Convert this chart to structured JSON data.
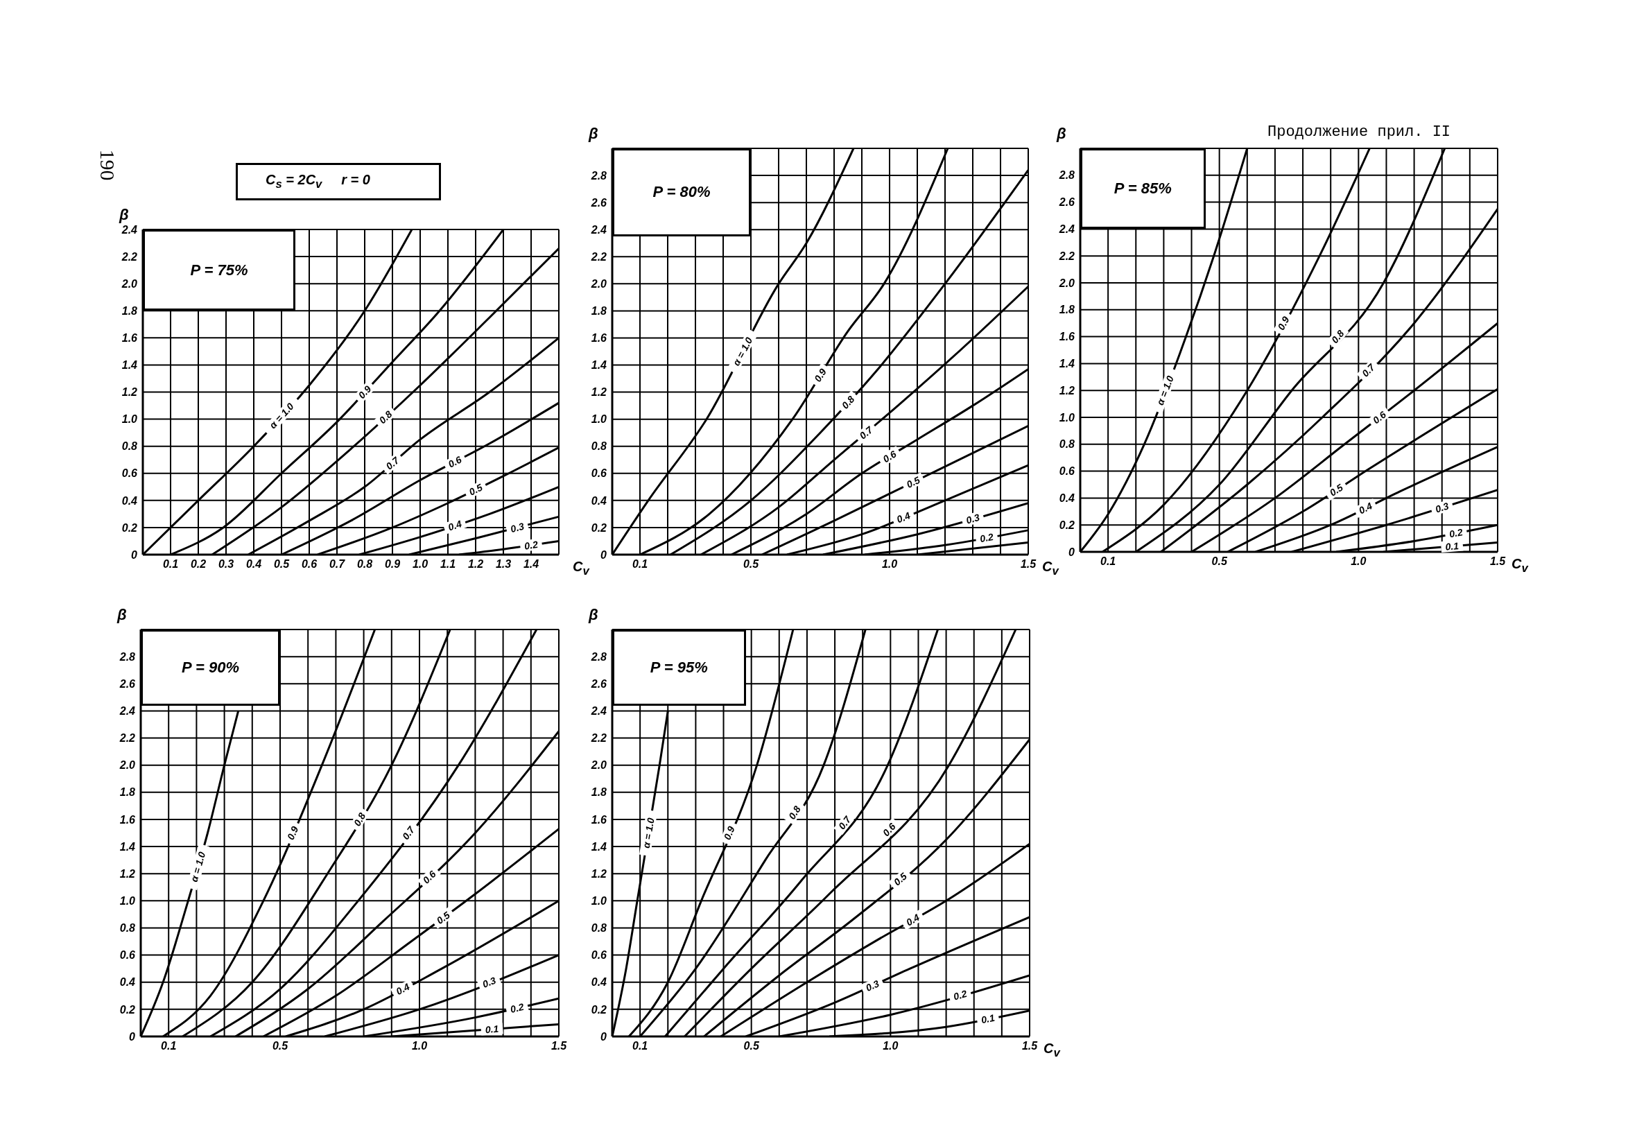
{
  "chart_data": [
    {
      "type": "line",
      "title": "P = 75%",
      "xlabel": "C$_{v}$",
      "ylabel": "β",
      "annotations": [
        "C$_{s}$ = 2C$_{v}$     r = 0",
        "190"
      ],
      "grid": true,
      "xlim": [
        0,
        1.5
      ],
      "xticks": [
        {
          "value": 0,
          "label": null
        },
        0.1,
        0.2,
        0.3,
        0.4,
        0.5,
        0.6,
        0.7,
        0.8,
        0.9,
        {
          "value": 1,
          "label": "1.0"
        },
        1.1,
        1.2,
        1.3,
        1.4,
        {
          "value": 1.5,
          "label": null
        }
      ],
      "ylim": [
        0,
        2.4
      ],
      "yticks": [
        0,
        0.2,
        0.4,
        0.6,
        0.8,
        {
          "value": 1,
          "label": "1.0"
        },
        1.2,
        1.4,
        1.6,
        1.8,
        {
          "value": 2,
          "label": "2.0"
        },
        2.2,
        2.4
      ],
      "series": [
        {
          "name": "α = 1.0",
          "color": "#000000",
          "x": [
            0,
            0.2,
            0.4,
            0.6,
            0.8,
            0.97
          ],
          "values": [
            0,
            0.4,
            0.8,
            1.25,
            1.8,
            2.4
          ]
        },
        {
          "name": "0.9",
          "color": "#000000",
          "x": [
            0.1,
            0.29,
            0.5,
            0.71,
            0.89,
            1.07,
            1.3
          ],
          "values": [
            0,
            0.2,
            0.6,
            1.0,
            1.4,
            1.8,
            2.4
          ]
        },
        {
          "name": "0.8",
          "color": "#000000",
          "x": [
            0.25,
            0.5,
            0.75,
            1.0,
            1.25,
            1.5
          ],
          "values": [
            0,
            0.35,
            0.78,
            1.25,
            1.75,
            2.26
          ]
        },
        {
          "name": "0.7",
          "color": "#000000",
          "x": [
            0.38,
            0.6,
            0.8,
            1.0,
            1.25,
            1.5
          ],
          "values": [
            0,
            0.25,
            0.5,
            0.85,
            1.2,
            1.6
          ]
        },
        {
          "name": "0.6",
          "color": "#000000",
          "x": [
            0.5,
            0.75,
            1.0,
            1.25,
            1.5
          ],
          "values": [
            0,
            0.25,
            0.55,
            0.82,
            1.12
          ]
        },
        {
          "name": "0.5",
          "color": "#000000",
          "x": [
            0.63,
            0.9,
            1.1,
            1.3,
            1.5
          ],
          "values": [
            0,
            0.2,
            0.38,
            0.58,
            0.79
          ]
        },
        {
          "name": "0.4",
          "color": "#000000",
          "x": [
            0.78,
            1.0,
            1.25,
            1.5
          ],
          "values": [
            0,
            0.13,
            0.3,
            0.5
          ]
        },
        {
          "name": "0.3",
          "color": "#000000",
          "x": [
            0.96,
            1.2,
            1.5
          ],
          "values": [
            0,
            0.12,
            0.28
          ]
        },
        {
          "name": "0.2",
          "color": "#000000",
          "x": [
            1.14,
            1.3,
            1.5
          ],
          "values": [
            0,
            0.04,
            0.1
          ]
        }
      ]
    },
    {
      "type": "line",
      "title": "P = 80%",
      "xlabel": "C$_{v}$",
      "ylabel": "β",
      "grid": true,
      "xlim": [
        0,
        1.5
      ],
      "xticks": [
        {
          "value": 0,
          "label": null
        },
        0.1,
        {
          "value": 0.2,
          "label": null
        },
        {
          "value": 0.3,
          "label": null
        },
        {
          "value": 0.4,
          "label": null
        },
        0.5,
        {
          "value": 0.6,
          "label": null
        },
        {
          "value": 0.7,
          "label": null
        },
        {
          "value": 0.8,
          "label": null
        },
        {
          "value": 0.9,
          "label": null
        },
        {
          "value": 1,
          "label": "1.0"
        },
        {
          "value": 1.1,
          "label": null
        },
        {
          "value": 1.2,
          "label": null
        },
        {
          "value": 1.3,
          "label": null
        },
        {
          "value": 1.4,
          "label": null
        },
        1.5
      ],
      "ylim": [
        0,
        3
      ],
      "yticks": [
        0,
        0.2,
        0.4,
        0.6,
        0.8,
        {
          "value": 1,
          "label": "1.0"
        },
        1.2,
        1.4,
        1.6,
        1.8,
        {
          "value": 2,
          "label": "2.0"
        },
        2.2,
        2.4,
        2.6,
        2.8,
        {
          "value": 3,
          "label": null
        }
      ],
      "series": [
        {
          "name": "α = 1.0",
          "color": "#000000",
          "x": [
            0,
            0.13,
            0.34,
            0.6,
            0.7,
            0.87
          ],
          "values": [
            0,
            0.4,
            1.0,
            2.0,
            2.3,
            3.0
          ]
        },
        {
          "name": "0.9",
          "color": "#000000",
          "x": [
            0.1,
            0.35,
            0.65,
            0.85,
            0.98,
            1.21
          ],
          "values": [
            0,
            0.3,
            1.0,
            1.65,
            2.0,
            3.0
          ]
        },
        {
          "name": "0.8",
          "color": "#000000",
          "x": [
            0.21,
            0.5,
            0.75,
            0.95,
            1.2,
            1.5
          ],
          "values": [
            0,
            0.4,
            0.9,
            1.35,
            2.0,
            2.84
          ]
        },
        {
          "name": "0.7",
          "color": "#000000",
          "x": [
            0.32,
            0.6,
            0.8,
            1.03,
            1.25,
            1.5
          ],
          "values": [
            0,
            0.35,
            0.7,
            1.1,
            1.5,
            1.98
          ]
        },
        {
          "name": "0.6",
          "color": "#000000",
          "x": [
            0.43,
            0.7,
            0.9,
            1.1,
            1.3,
            1.5
          ],
          "values": [
            0,
            0.3,
            0.6,
            0.85,
            1.1,
            1.37
          ]
        },
        {
          "name": "0.5",
          "color": "#000000",
          "x": [
            0.54,
            0.8,
            1.0,
            1.17,
            1.5
          ],
          "values": [
            0,
            0.25,
            0.45,
            0.62,
            0.95
          ]
        },
        {
          "name": "0.4",
          "color": "#000000",
          "x": [
            0.63,
            0.9,
            1.2,
            1.5
          ],
          "values": [
            0,
            0.15,
            0.4,
            0.66
          ]
        },
        {
          "name": "0.3",
          "color": "#000000",
          "x": [
            0.76,
            1.1,
            1.5
          ],
          "values": [
            0,
            0.15,
            0.38
          ]
        },
        {
          "name": "0.2",
          "color": "#000000",
          "x": [
            0.91,
            1.2,
            1.5
          ],
          "values": [
            0,
            0.07,
            0.18
          ]
        },
        {
          "color": "#000000",
          "x": [
            1.1,
            1.5
          ],
          "values": [
            0,
            0.09
          ]
        }
      ]
    },
    {
      "type": "line",
      "title": "P = 85%",
      "xlabel": "C$_{v}$",
      "ylabel": "β",
      "annotations": [
        "Продолжение прил. II"
      ],
      "grid": true,
      "xlim": [
        0,
        1.5
      ],
      "xticks": [
        {
          "value": 0,
          "label": null
        },
        0.1,
        {
          "value": 0.2,
          "label": null
        },
        {
          "value": 0.3,
          "label": null
        },
        {
          "value": 0.4,
          "label": null
        },
        0.5,
        {
          "value": 0.6,
          "label": null
        },
        {
          "value": 0.7,
          "label": null
        },
        {
          "value": 0.8,
          "label": null
        },
        {
          "value": 0.9,
          "label": null
        },
        {
          "value": 1,
          "label": "1.0"
        },
        {
          "value": 1.1,
          "label": null
        },
        {
          "value": 1.2,
          "label": null
        },
        {
          "value": 1.3,
          "label": null
        },
        {
          "value": 1.4,
          "label": null
        },
        1.5
      ],
      "ylim": [
        0,
        3
      ],
      "yticks": [
        0,
        0.2,
        0.4,
        0.6,
        0.8,
        {
          "value": 1,
          "label": "1.0"
        },
        1.2,
        1.4,
        1.6,
        1.8,
        {
          "value": 2,
          "label": "2.0"
        },
        2.2,
        2.4,
        2.6,
        2.8,
        {
          "value": 3,
          "label": null
        }
      ],
      "series": [
        {
          "name": "α = 1.0",
          "color": "#000000",
          "x": [
            0,
            0.1,
            0.23,
            0.38,
            0.48,
            0.6
          ],
          "values": [
            0,
            0.28,
            0.8,
            1.6,
            2.2,
            3.0
          ]
        },
        {
          "name": "0.9",
          "color": "#000000",
          "x": [
            0.08,
            0.3,
            0.6,
            0.86,
            1.04
          ],
          "values": [
            0,
            0.35,
            1.2,
            2.2,
            3.0
          ]
        },
        {
          "name": "0.8",
          "color": "#000000",
          "x": [
            0.2,
            0.5,
            0.76,
            1.09,
            1.31
          ],
          "values": [
            0,
            0.5,
            1.2,
            2.0,
            3.0
          ]
        },
        {
          "name": "0.7",
          "color": "#000000",
          "x": [
            0.29,
            0.6,
            0.87,
            1.2,
            1.5
          ],
          "values": [
            0,
            0.5,
            1.0,
            1.7,
            2.55
          ]
        },
        {
          "name": "0.6",
          "color": "#000000",
          "x": [
            0.4,
            0.7,
            0.95,
            1.2,
            1.5
          ],
          "values": [
            0,
            0.4,
            0.8,
            1.2,
            1.7
          ]
        },
        {
          "name": "0.5",
          "color": "#000000",
          "x": [
            0.53,
            0.8,
            1.04,
            1.5
          ],
          "values": [
            0,
            0.3,
            0.62,
            1.21
          ]
        },
        {
          "name": "0.4",
          "color": "#000000",
          "x": [
            0.63,
            0.9,
            1.15,
            1.5
          ],
          "values": [
            0,
            0.2,
            0.45,
            0.78
          ]
        },
        {
          "name": "0.3",
          "color": "#000000",
          "x": [
            0.76,
            1.1,
            1.5
          ],
          "values": [
            0,
            0.2,
            0.46
          ]
        },
        {
          "name": "0.2",
          "color": "#000000",
          "x": [
            0.92,
            1.2,
            1.5
          ],
          "values": [
            0,
            0.08,
            0.2
          ]
        },
        {
          "name": "0.1",
          "color": "#000000",
          "x": [
            1.09,
            1.5
          ],
          "values": [
            0,
            0.07
          ]
        }
      ]
    },
    {
      "type": "line",
      "title": "P = 90%",
      "ylabel": "β",
      "grid": true,
      "xlim": [
        0,
        1.5
      ],
      "xticks": [
        {
          "value": 0,
          "label": null
        },
        0.1,
        {
          "value": 0.2,
          "label": null
        },
        {
          "value": 0.3,
          "label": null
        },
        {
          "value": 0.4,
          "label": null
        },
        0.5,
        {
          "value": 0.6,
          "label": null
        },
        {
          "value": 0.7,
          "label": null
        },
        {
          "value": 0.8,
          "label": null
        },
        {
          "value": 0.9,
          "label": null
        },
        {
          "value": 1,
          "label": "1.0"
        },
        {
          "value": 1.1,
          "label": null
        },
        {
          "value": 1.2,
          "label": null
        },
        {
          "value": 1.3,
          "label": null
        },
        {
          "value": 1.4,
          "label": null
        },
        1.5
      ],
      "ylim": [
        0,
        3
      ],
      "yticks": [
        0,
        0.2,
        0.4,
        0.6,
        0.8,
        {
          "value": 1,
          "label": "1.0"
        },
        1.2,
        1.4,
        1.6,
        1.8,
        {
          "value": 2,
          "label": "2.0"
        },
        2.2,
        2.4,
        2.6,
        2.8,
        {
          "value": 3,
          "label": null
        }
      ],
      "series": [
        {
          "name": "α = 1.0",
          "color": "#000000",
          "x": [
            0,
            0.08,
            0.17,
            0.24,
            0.3,
            0.35
          ],
          "values": [
            0,
            0.4,
            1.0,
            1.5,
            2.0,
            2.4
          ]
        },
        {
          "name": "0.9",
          "color": "#000000",
          "x": [
            0.08,
            0.25,
            0.44,
            0.65,
            0.84
          ],
          "values": [
            0,
            0.3,
            1.0,
            2.0,
            3.0
          ]
        },
        {
          "name": "0.8",
          "color": "#000000",
          "x": [
            0.15,
            0.4,
            0.67,
            0.9,
            1.11
          ],
          "values": [
            0,
            0.4,
            1.2,
            2.0,
            3.0
          ]
        },
        {
          "name": "0.7",
          "color": "#000000",
          "x": [
            0.25,
            0.5,
            0.78,
            1.14,
            1.42
          ],
          "values": [
            0,
            0.35,
            1.0,
            2.0,
            3.0
          ]
        },
        {
          "name": "0.6",
          "color": "#000000",
          "x": [
            0.34,
            0.6,
            0.87,
            1.2,
            1.5
          ],
          "values": [
            0,
            0.35,
            0.85,
            1.5,
            2.25
          ]
        },
        {
          "name": "0.5",
          "color": "#000000",
          "x": [
            0.44,
            0.7,
            0.97,
            1.2,
            1.5
          ],
          "values": [
            0,
            0.3,
            0.7,
            1.05,
            1.53
          ]
        },
        {
          "name": "0.4",
          "color": "#000000",
          "x": [
            0.52,
            0.8,
            1.08,
            1.5
          ],
          "values": [
            0,
            0.2,
            0.5,
            1.0
          ]
        },
        {
          "name": "0.3",
          "color": "#000000",
          "x": [
            0.66,
            1.0,
            1.5
          ],
          "values": [
            0,
            0.2,
            0.6
          ]
        },
        {
          "name": "0.2",
          "color": "#000000",
          "x": [
            0.8,
            1.2,
            1.5
          ],
          "values": [
            0,
            0.14,
            0.28
          ]
        },
        {
          "name": "0.1",
          "color": "#000000",
          "x": [
            0.9,
            1.5
          ],
          "values": [
            0,
            0.09
          ]
        }
      ]
    },
    {
      "type": "line",
      "title": "P = 95%",
      "xlabel": "C$_{v}$",
      "ylabel": "β",
      "grid": true,
      "xlim": [
        0,
        1.5
      ],
      "xticks": [
        {
          "value": 0,
          "label": null
        },
        0.1,
        {
          "value": 0.2,
          "label": null
        },
        {
          "value": 0.3,
          "label": null
        },
        {
          "value": 0.4,
          "label": null
        },
        0.5,
        {
          "value": 0.6,
          "label": null
        },
        {
          "value": 0.7,
          "label": null
        },
        {
          "value": 0.8,
          "label": null
        },
        {
          "value": 0.9,
          "label": null
        },
        {
          "value": 1,
          "label": "1.0"
        },
        {
          "value": 1.1,
          "label": null
        },
        {
          "value": 1.2,
          "label": null
        },
        {
          "value": 1.3,
          "label": null
        },
        {
          "value": 1.4,
          "label": null
        },
        1.5
      ],
      "ylim": [
        0,
        3
      ],
      "yticks": [
        0,
        0.2,
        0.4,
        0.6,
        0.8,
        {
          "value": 1,
          "label": "1.0"
        },
        1.2,
        1.4,
        1.6,
        1.8,
        {
          "value": 2,
          "label": "2.0"
        },
        2.2,
        2.4,
        2.6,
        2.8,
        {
          "value": 3,
          "label": null
        }
      ],
      "series": [
        {
          "name": "α = 1.0",
          "color": "#000000",
          "x": [
            0,
            0.05,
            0.09,
            0.17,
            0.2
          ],
          "values": [
            0,
            0.5,
            1.0,
            2.0,
            2.4
          ]
        },
        {
          "name": "0.9",
          "color": "#000000",
          "x": [
            0.06,
            0.2,
            0.32,
            0.52,
            0.65
          ],
          "values": [
            0,
            0.4,
            1.0,
            2.0,
            3.0
          ]
        },
        {
          "name": "0.8",
          "color": "#000000",
          "x": [
            0.1,
            0.3,
            0.55,
            0.76,
            0.91
          ],
          "values": [
            0,
            0.5,
            1.3,
            2.0,
            3.0
          ]
        },
        {
          "name": "0.7",
          "color": "#000000",
          "x": [
            0.19,
            0.4,
            0.68,
            0.99,
            1.17
          ],
          "values": [
            0,
            0.5,
            1.15,
            2.0,
            3.0
          ]
        },
        {
          "name": "0.6",
          "color": "#000000",
          "x": [
            0.26,
            0.5,
            0.78,
            1.21,
            1.45
          ],
          "values": [
            0,
            0.5,
            1.05,
            2.0,
            3.0
          ]
        },
        {
          "name": "0.5",
          "color": "#000000",
          "x": [
            0.33,
            0.6,
            0.87,
            1.2,
            1.5
          ],
          "values": [
            0,
            0.45,
            0.87,
            1.45,
            2.19
          ]
        },
        {
          "name": "0.4",
          "color": "#000000",
          "x": [
            0.39,
            0.7,
            0.96,
            1.2,
            1.5
          ],
          "values": [
            0,
            0.4,
            0.72,
            1.0,
            1.42
          ]
        },
        {
          "name": "0.3",
          "color": "#000000",
          "x": [
            0.48,
            0.8,
            1.07,
            1.5
          ],
          "values": [
            0,
            0.25,
            0.5,
            0.88
          ]
        },
        {
          "name": "0.2",
          "color": "#000000",
          "x": [
            0.6,
            1.0,
            1.5
          ],
          "values": [
            0,
            0.16,
            0.45
          ]
        },
        {
          "name": "0.1",
          "color": "#000000",
          "x": [
            0.78,
            1.2,
            1.5
          ],
          "values": [
            0,
            0.07,
            0.19
          ]
        }
      ]
    }
  ]
}
